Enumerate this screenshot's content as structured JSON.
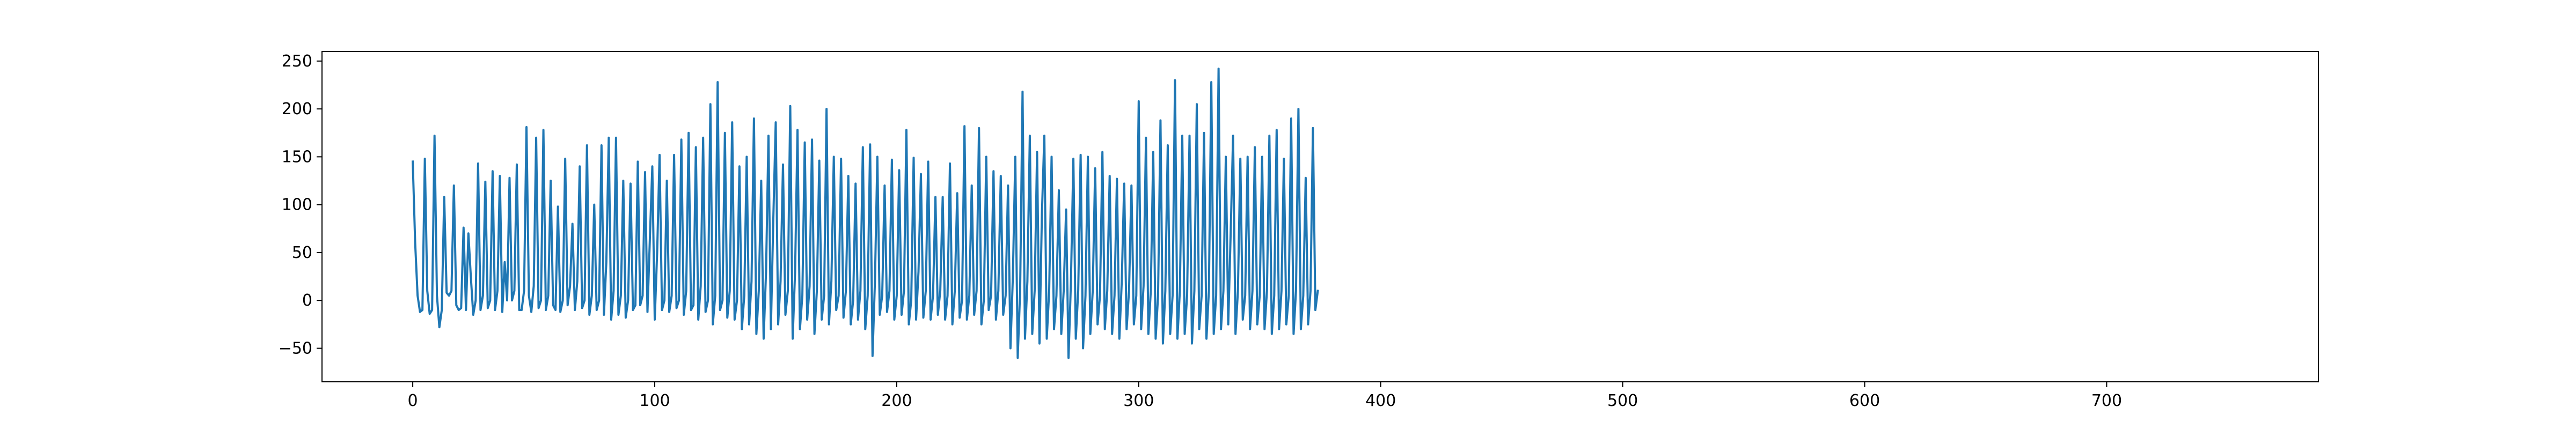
{
  "chart_data": {
    "type": "line",
    "title": "",
    "xlabel": "",
    "ylabel": "",
    "xlim": [
      -37.5,
      787.5
    ],
    "ylim": [
      -85,
      260
    ],
    "xticks": [
      0,
      100,
      200,
      300,
      400,
      500,
      600,
      700
    ],
    "yticks": [
      -50,
      0,
      50,
      100,
      150,
      200,
      250
    ],
    "xtick_labels": [
      "0",
      "100",
      "200",
      "300",
      "400",
      "500",
      "600",
      "700"
    ],
    "ytick_labels": [
      "−50",
      "0",
      "50",
      "100",
      "150",
      "200",
      "250"
    ],
    "grid": false,
    "legend": "none",
    "line_color": "#1f77b4",
    "series": [
      {
        "x_start": 0,
        "x_step": 1,
        "values": [
          145,
          60,
          5,
          -12,
          -10,
          148,
          10,
          -14,
          -10,
          172,
          5,
          -28,
          -10,
          108,
          8,
          5,
          10,
          120,
          -5,
          -10,
          -8,
          76,
          -10,
          70,
          25,
          -15,
          0,
          143,
          -10,
          5,
          124,
          -8,
          0,
          135,
          -10,
          10,
          130,
          -12,
          40,
          0,
          128,
          0,
          10,
          142,
          -10,
          -10,
          10,
          181,
          5,
          -12,
          15,
          170,
          -8,
          0,
          178,
          -10,
          5,
          125,
          -5,
          -10,
          98,
          -12,
          0,
          148,
          -5,
          15,
          80,
          -10,
          20,
          140,
          -8,
          0,
          162,
          -15,
          5,
          100,
          -10,
          0,
          162,
          -15,
          40,
          170,
          -20,
          10,
          170,
          -15,
          5,
          125,
          -18,
          0,
          122,
          -10,
          -5,
          145,
          -5,
          5,
          134,
          -12,
          65,
          140,
          -20,
          50,
          152,
          -10,
          0,
          125,
          -12,
          5,
          152,
          -8,
          0,
          168,
          -15,
          10,
          175,
          -10,
          -5,
          160,
          -20,
          15,
          170,
          -12,
          0,
          205,
          -25,
          5,
          228,
          -10,
          0,
          175,
          -18,
          10,
          186,
          -20,
          0,
          140,
          -30,
          5,
          150,
          -25,
          20,
          190,
          -35,
          10,
          125,
          -40,
          30,
          172,
          -30,
          85,
          186,
          -25,
          20,
          142,
          -15,
          10,
          203,
          -40,
          30,
          178,
          -30,
          5,
          165,
          -20,
          15,
          168,
          -35,
          10,
          146,
          -20,
          5,
          200,
          -25,
          20,
          150,
          -10,
          5,
          148,
          -18,
          10,
          130,
          -25,
          0,
          122,
          -20,
          10,
          160,
          -30,
          5,
          163,
          -58,
          20,
          150,
          -15,
          5,
          120,
          -12,
          10,
          147,
          -20,
          5,
          136,
          -15,
          10,
          178,
          -25,
          0,
          149,
          -20,
          30,
          132,
          -18,
          10,
          145,
          -20,
          5,
          108,
          -15,
          10,
          108,
          -20,
          5,
          143,
          -25,
          10,
          112,
          -18,
          0,
          182,
          -20,
          5,
          120,
          -15,
          10,
          180,
          -25,
          0,
          150,
          -10,
          5,
          135,
          -20,
          10,
          130,
          -15,
          5,
          120,
          -50,
          25,
          150,
          -60,
          10,
          218,
          -40,
          20,
          172,
          -35,
          10,
          155,
          -45,
          90,
          172,
          -40,
          10,
          150,
          -30,
          5,
          115,
          -35,
          10,
          95,
          -60,
          20,
          148,
          -40,
          10,
          152,
          -50,
          5,
          150,
          -35,
          10,
          138,
          -25,
          5,
          155,
          -30,
          10,
          130,
          -35,
          5,
          127,
          -40,
          20,
          122,
          -30,
          10,
          120,
          -25,
          5,
          208,
          -30,
          15,
          170,
          -35,
          10,
          155,
          -40,
          5,
          188,
          -45,
          10,
          162,
          -35,
          5,
          230,
          -40,
          10,
          172,
          -35,
          5,
          172,
          -45,
          10,
          205,
          -30,
          5,
          175,
          -40,
          10,
          228,
          -35,
          5,
          242,
          -30,
          10,
          150,
          -25,
          70,
          172,
          -35,
          10,
          148,
          -20,
          5,
          150,
          -30,
          10,
          160,
          -25,
          5,
          150,
          -30,
          10,
          172,
          -35,
          5,
          178,
          -30,
          10,
          148,
          -25,
          5,
          190,
          -35,
          10,
          200,
          -30,
          5,
          128,
          -25,
          10,
          180,
          -10,
          10
        ]
      }
    ]
  }
}
